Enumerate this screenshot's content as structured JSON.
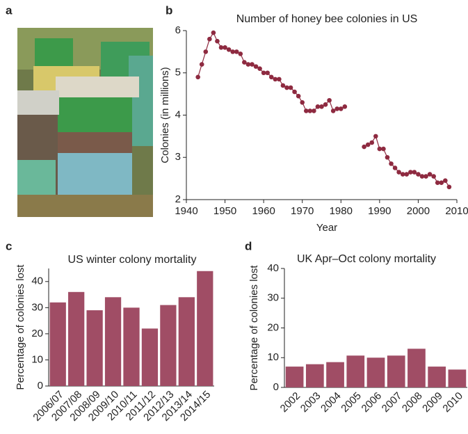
{
  "photo_label": "a",
  "chart_data": [
    {
      "type": "line",
      "label": "b",
      "title": "Number of honey bee colonies in US",
      "x_label": "Year",
      "y_label": "Colonies (in millions)",
      "color": "#8e2a40",
      "x": [
        1943,
        1944,
        1945,
        1946,
        1947,
        1948,
        1949,
        1950,
        1951,
        1952,
        1953,
        1954,
        1955,
        1956,
        1957,
        1958,
        1959,
        1960,
        1961,
        1962,
        1963,
        1964,
        1965,
        1966,
        1967,
        1968,
        1969,
        1970,
        1971,
        1972,
        1973,
        1974,
        1975,
        1976,
        1977,
        1978,
        1979,
        1980,
        1981,
        1982,
        1983,
        1984,
        1985,
        1986,
        1987,
        1988,
        1989,
        1990,
        1991,
        1992,
        1993,
        1994,
        1995,
        1996,
        1997,
        1998,
        1999,
        2000,
        2001,
        2002,
        2003,
        2004,
        2005,
        2006,
        2007,
        2008
      ],
      "values": [
        4.9,
        5.2,
        5.5,
        5.8,
        5.95,
        5.75,
        5.6,
        5.6,
        5.55,
        5.5,
        5.5,
        5.45,
        5.25,
        5.2,
        5.2,
        5.15,
        5.1,
        5.0,
        5.0,
        4.9,
        4.85,
        4.85,
        4.7,
        4.65,
        4.65,
        4.55,
        4.45,
        4.3,
        4.1,
        4.1,
        4.1,
        4.2,
        4.2,
        4.25,
        4.35,
        4.1,
        4.15,
        4.15,
        4.2,
        null,
        null,
        null,
        null,
        3.25,
        3.3,
        3.35,
        3.5,
        3.2,
        3.2,
        3.0,
        2.85,
        2.75,
        2.65,
        2.6,
        2.6,
        2.65,
        2.65,
        2.6,
        2.55,
        2.55,
        2.6,
        2.55,
        2.4,
        2.4,
        2.45,
        2.3
      ],
      "xlim": [
        1940,
        2010
      ],
      "xticks": [
        1940,
        1950,
        1960,
        1970,
        1980,
        1990,
        2000,
        2010
      ],
      "ylim": [
        2,
        6
      ],
      "yticks": [
        2,
        3,
        4,
        5,
        6
      ]
    },
    {
      "type": "bar",
      "label": "c",
      "title": "US winter colony mortality",
      "y_label": "Percentage of colonies lost",
      "color": "#a04d65",
      "categories": [
        "2006/07",
        "2007/08",
        "2008/09",
        "2009/10",
        "2010/11",
        "2011/12",
        "2012/13",
        "2013/14",
        "2014/15"
      ],
      "values": [
        32,
        36,
        29,
        34,
        30,
        22,
        31,
        34,
        44
      ],
      "ylim": [
        0,
        45
      ],
      "yticks": [
        0,
        10,
        20,
        30,
        40
      ]
    },
    {
      "type": "bar",
      "label": "d",
      "title": "UK Apr–Oct colony mortality",
      "y_label": "Percentage of colonies lost",
      "color": "#a04d65",
      "categories": [
        "2002",
        "2003",
        "2004",
        "2005",
        "2006",
        "2007",
        "2008",
        "2009",
        "2010"
      ],
      "values": [
        7,
        7.8,
        8.5,
        10.7,
        10,
        10.7,
        13,
        7,
        6
      ],
      "ylim": [
        0,
        40
      ],
      "yticks": [
        0,
        10,
        20,
        30,
        40
      ]
    }
  ]
}
